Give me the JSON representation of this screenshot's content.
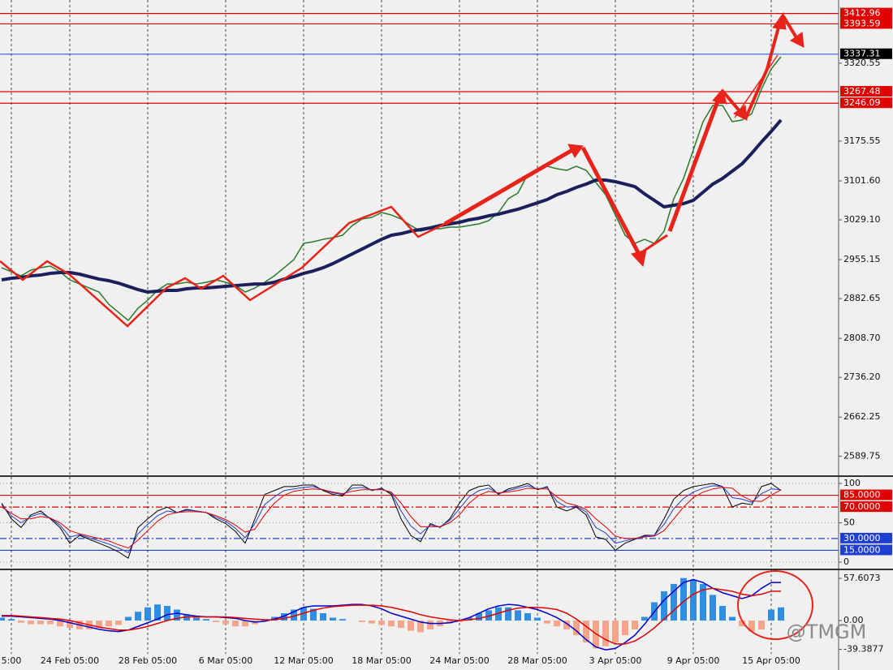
{
  "chart_data": [
    {
      "type": "line",
      "ylim": [
        2557,
        3438
      ],
      "yticks": [
        {
          "value": 3320.55,
          "label": "3320.55"
        },
        {
          "value": 3175.55,
          "label": "3175.55"
        },
        {
          "value": 3101.6,
          "label": "3101.60"
        },
        {
          "value": 3029.1,
          "label": "3029.10"
        },
        2955.15,
        2882.65,
        {
          "value": 2808.7,
          "label": "2808.70"
        },
        {
          "value": 2736.2,
          "label": "2736.20"
        },
        2662.25,
        2589.75
      ],
      "levels": [
        {
          "value": 3412.96,
          "color": "#e00000",
          "label_color": "#e00000"
        },
        {
          "value": 3393.59,
          "color": "#e00000",
          "label_color": "#e00000"
        },
        {
          "value": 3337.31,
          "color": "#3a6fe0",
          "label_color": "#000000"
        },
        {
          "value": 3267.48,
          "color": "#e00000",
          "label_color": "#e00000"
        },
        {
          "value": 3246.09,
          "color": "#e00000",
          "label_color": "#e00000"
        }
      ],
      "series": [
        {
          "color": "#2a7a2a",
          "line_width": 1.5,
          "values": [
            2940.1,
            2932.6,
            2925.0,
            2935.6,
            2940.1,
            2943.2,
            2932.6,
            2917.5,
            2909.9,
            2902.4,
            2894.9,
            2872.2,
            2857.1,
            2842.0,
            2864.7,
            2879.8,
            2897.9,
            2909.9,
            2909.9,
            2913.0,
            2909.9,
            2913.0,
            2917.5,
            2913.0,
            2906.9,
            2894.9,
            2902.4,
            2913.0,
            2925.0,
            2940.1,
            2955.2,
            2985.4,
            2988.4,
            2992.9,
            2996.0,
            3000.5,
            3018.6,
            3030.7,
            3033.7,
            3042.7,
            3038.2,
            3030.7,
            3018.6,
            3008.0,
            3012.6,
            3012.6,
            3015.6,
            3015.6,
            3018.6,
            3021.6,
            3027.7,
            3042.7,
            3068.4,
            3079.0,
            3113.7,
            3121.2,
            3128.8,
            3124.2,
            3121.2,
            3128.8,
            3121.2,
            3098.6,
            3075.9,
            3038.2,
            3000.5,
            2985.4,
            2992.9,
            2985.4,
            3008.0,
            3068.4,
            3106.1,
            3158.9,
            3211.7,
            3241.9,
            3241.9,
            3211.7,
            3214.8,
            3226.8,
            3272.1,
            3309.8,
            3332.5
          ]
        },
        {
          "color": "#1b1f5c",
          "line_width": 4,
          "values": [
            2917.5,
            2920.5,
            2922.0,
            2925.0,
            2926.5,
            2929.6,
            2931.1,
            2931.1,
            2928.1,
            2923.5,
            2919.0,
            2916.0,
            2911.5,
            2905.4,
            2899.4,
            2894.9,
            2896.4,
            2897.9,
            2897.9,
            2900.9,
            2902.4,
            2902.4,
            2903.9,
            2905.4,
            2906.9,
            2908.4,
            2909.9,
            2909.9,
            2913.0,
            2919.0,
            2923.5,
            2929.6,
            2934.1,
            2940.1,
            2947.7,
            2956.7,
            2965.8,
            2974.8,
            2983.9,
            2992.9,
            3000.5,
            3003.5,
            3008.0,
            3011.1,
            3014.1,
            3018.6,
            3021.6,
            3024.6,
            3029.2,
            3032.2,
            3036.7,
            3039.7,
            3044.3,
            3048.8,
            3054.8,
            3060.8,
            3066.9,
            3075.9,
            3082.0,
            3089.5,
            3095.6,
            3103.1,
            3103.1,
            3100.1,
            3095.6,
            3091.0,
            3077.4,
            3065.4,
            3053.3,
            3056.3,
            3059.3,
            3065.4,
            3080.5,
            3095.6,
            3106.1,
            3119.7,
            3133.3,
            3152.9,
            3174.0,
            3193.6,
            3214.8
          ]
        }
      ]
    },
    {
      "type": "line",
      "ylim": [
        0,
        100
      ],
      "yticks": [
        100,
        50,
        0
      ],
      "levels": [
        {
          "value": 85,
          "label": "85.0000",
          "color": "#e00000",
          "label_color": "#e00000",
          "dash": "solid"
        },
        {
          "value": 70,
          "label": "70.0000",
          "color": "#e00000",
          "label_color": "#e00000",
          "dash": "dashdot"
        },
        {
          "value": 30,
          "label": "30.0000",
          "color": "#1f3fd0",
          "label_color": "#1f3fd0",
          "dash": "dashdot"
        },
        {
          "value": 15,
          "label": "15.0000",
          "color": "#1f3fd0",
          "label_color": "#1f3fd0",
          "dash": "solid"
        }
      ],
      "series": [
        {
          "color": "#000000",
          "line_width": 1,
          "values": [
            75,
            55,
            44,
            60,
            65,
            55,
            44,
            24,
            34,
            29,
            24,
            19,
            13,
            5,
            44,
            55,
            65,
            70,
            63,
            67,
            65,
            63,
            55,
            49,
            39,
            24,
            55,
            86,
            91,
            96,
            96,
            98,
            98,
            91,
            86,
            84,
            98,
            98,
            91,
            94,
            86,
            55,
            34,
            26,
            49,
            44,
            55,
            75,
            91,
            96,
            98,
            86,
            93,
            96,
            100,
            92,
            96,
            70,
            65,
            70,
            60,
            32,
            29,
            15,
            24,
            29,
            34,
            34,
            55,
            80,
            91,
            96,
            98,
            100,
            96,
            70,
            75,
            73,
            96,
            100,
            91
          ]
        },
        {
          "color": "#1f3fd0",
          "line_width": 1,
          "values": [
            73,
            59,
            50,
            58,
            62,
            56,
            47,
            32,
            35,
            31,
            27,
            23,
            18,
            12,
            36,
            48,
            59,
            65,
            63,
            66,
            65,
            63,
            57,
            52,
            43,
            31,
            49,
            73,
            83,
            91,
            93,
            95,
            96,
            92,
            88,
            86,
            94,
            95,
            92,
            93,
            88,
            65,
            46,
            36,
            47,
            45,
            53,
            68,
            83,
            91,
            94,
            87,
            91,
            94,
            97,
            93,
            95,
            77,
            70,
            71,
            64,
            44,
            37,
            24,
            27,
            30,
            33,
            34,
            48,
            68,
            81,
            89,
            94,
            97,
            96,
            82,
            80,
            76,
            87,
            93,
            92
          ]
        },
        {
          "color": "#e00000",
          "line_width": 1,
          "values": [
            70,
            62,
            55,
            55,
            58,
            56,
            50,
            40,
            36,
            33,
            30,
            27,
            22,
            18,
            28,
            40,
            52,
            60,
            63,
            64,
            64,
            63,
            59,
            54,
            47,
            38,
            42,
            60,
            75,
            85,
            90,
            92,
            93,
            92,
            89,
            87,
            90,
            92,
            92,
            92,
            89,
            75,
            58,
            45,
            45,
            45,
            50,
            60,
            75,
            85,
            90,
            88,
            89,
            91,
            94,
            93,
            93,
            83,
            75,
            72,
            67,
            55,
            45,
            33,
            30,
            30,
            32,
            33,
            40,
            55,
            70,
            82,
            89,
            93,
            95,
            94,
            84,
            78,
            77,
            85,
            92
          ]
        }
      ]
    },
    {
      "type": "combo",
      "ylim": [
        -63.1,
        65.4
      ],
      "yticks": [
        57.6073,
        {
          "value": 0,
          "label": "0.00"
        },
        -39.3877
      ],
      "categories": [
        null,
        "5:00",
        null,
        null,
        null,
        null,
        null,
        "24 Feb 05:00",
        null,
        null,
        null,
        null,
        null,
        null,
        null,
        "28 Feb 05:00",
        null,
        null,
        null,
        null,
        null,
        null,
        null,
        "6 Mar 05:00",
        null,
        null,
        null,
        null,
        null,
        null,
        null,
        "12 Mar 05:00",
        null,
        null,
        null,
        null,
        null,
        null,
        null,
        "18 Mar 05:00",
        null,
        null,
        null,
        null,
        null,
        null,
        null,
        "24 Mar 05:00",
        null,
        null,
        null,
        null,
        null,
        null,
        null,
        "28 Mar 05:00",
        null,
        null,
        null,
        null,
        null,
        null,
        null,
        "3 Apr 05:00",
        null,
        null,
        null,
        null,
        null,
        null,
        null,
        "9 Apr 05:00",
        null,
        null,
        null,
        null,
        null,
        null,
        null,
        "15 Apr 05:00",
        null
      ],
      "series": [
        {
          "type": "bar",
          "color": "#2f8ee0",
          "negative_color": "#f4a58a",
          "values": [
            4,
            2,
            -3,
            -5,
            -5,
            -5,
            -8,
            -10,
            -12,
            -12,
            -10,
            -8,
            -6,
            5,
            12,
            18,
            22,
            20,
            15,
            8,
            4,
            2,
            -2,
            -5,
            -8,
            -8,
            -5,
            2,
            5,
            10,
            15,
            18,
            16,
            10,
            4,
            2,
            0,
            -2,
            -4,
            -6,
            -8,
            -10,
            -14,
            -16,
            -12,
            -8,
            -4,
            -2,
            4,
            10,
            14,
            18,
            18,
            14,
            10,
            4,
            -4,
            -8,
            -12,
            -20,
            -30,
            -38,
            -35,
            -30,
            -20,
            -12,
            5,
            25,
            40,
            50,
            58,
            55,
            50,
            35,
            20,
            5,
            -8,
            -15,
            -12,
            15,
            18
          ]
        },
        {
          "color": "#0000cc",
          "line_width": 1.5,
          "values": [
            6,
            6,
            5,
            4,
            3,
            2,
            0,
            -3,
            -6,
            -9,
            -12,
            -14,
            -15,
            -13,
            -8,
            -3,
            2,
            8,
            10,
            8,
            6,
            5,
            5,
            4,
            3,
            0,
            -2,
            -1,
            2,
            6,
            12,
            18,
            20,
            20,
            20,
            21,
            22,
            22,
            20,
            16,
            10,
            6,
            2,
            -2,
            -4,
            -4,
            -3,
            0,
            4,
            10,
            16,
            20,
            22,
            21,
            18,
            15,
            10,
            4,
            -4,
            -14,
            -26,
            -36,
            -40,
            -38,
            -30,
            -20,
            -5,
            12,
            28,
            40,
            52,
            56,
            52,
            44,
            38,
            34,
            30,
            34,
            44,
            52,
            52
          ]
        },
        {
          "color": "#e00000",
          "line_width": 1.5,
          "values": [
            7,
            7,
            6,
            5,
            4,
            3,
            2,
            0,
            -3,
            -6,
            -9,
            -11,
            -13,
            -13,
            -11,
            -8,
            -4,
            0,
            3,
            5,
            5,
            5,
            5,
            5,
            4,
            3,
            2,
            1,
            1,
            3,
            6,
            10,
            14,
            17,
            19,
            20,
            21,
            21,
            21,
            20,
            18,
            15,
            12,
            8,
            5,
            3,
            1,
            0,
            1,
            3,
            6,
            10,
            14,
            17,
            18,
            18,
            17,
            15,
            10,
            2,
            -8,
            -18,
            -26,
            -32,
            -32,
            -28,
            -20,
            -10,
            2,
            14,
            26,
            36,
            42,
            44,
            42,
            40,
            36,
            34,
            36,
            40,
            40
          ]
        }
      ]
    }
  ],
  "watermark": "@TMGM"
}
